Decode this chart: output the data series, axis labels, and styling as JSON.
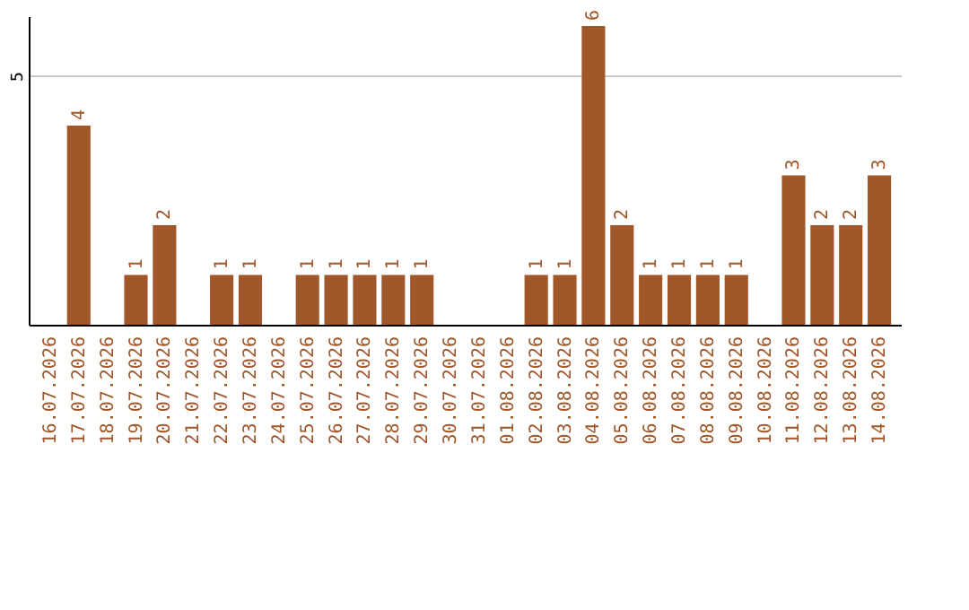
{
  "chart_data": {
    "type": "bar",
    "categories": [
      "16.07.2026",
      "17.07.2026",
      "18.07.2026",
      "19.07.2026",
      "20.07.2026",
      "21.07.2026",
      "22.07.2026",
      "23.07.2026",
      "24.07.2026",
      "25.07.2026",
      "26.07.2026",
      "27.07.2026",
      "28.07.2026",
      "29.07.2026",
      "30.07.2026",
      "31.07.2026",
      "01.08.2026",
      "02.08.2026",
      "03.08.2026",
      "04.08.2026",
      "05.08.2026",
      "06.08.2026",
      "07.08.2026",
      "08.08.2026",
      "09.08.2026",
      "10.08.2026",
      "11.08.2026",
      "12.08.2026",
      "13.08.2026",
      "14.08.2026"
    ],
    "values": [
      0,
      4,
      0,
      1,
      2,
      0,
      1,
      1,
      0,
      1,
      1,
      1,
      1,
      1,
      0,
      0,
      0,
      1,
      1,
      6,
      2,
      1,
      1,
      1,
      1,
      0,
      3,
      2,
      2,
      3
    ],
    "value_labels": [
      null,
      "4",
      null,
      "1",
      "2",
      null,
      "1",
      "1",
      null,
      "1",
      "1",
      "1",
      "1",
      "1",
      null,
      null,
      null,
      "1",
      "1",
      "6",
      "2",
      "1",
      "1",
      "1",
      "1",
      null,
      "3",
      "2",
      "2",
      "3"
    ],
    "color": "#a0572a",
    "ylim": [
      0,
      6.2
    ],
    "yticks": [
      5
    ],
    "grid": "y"
  }
}
